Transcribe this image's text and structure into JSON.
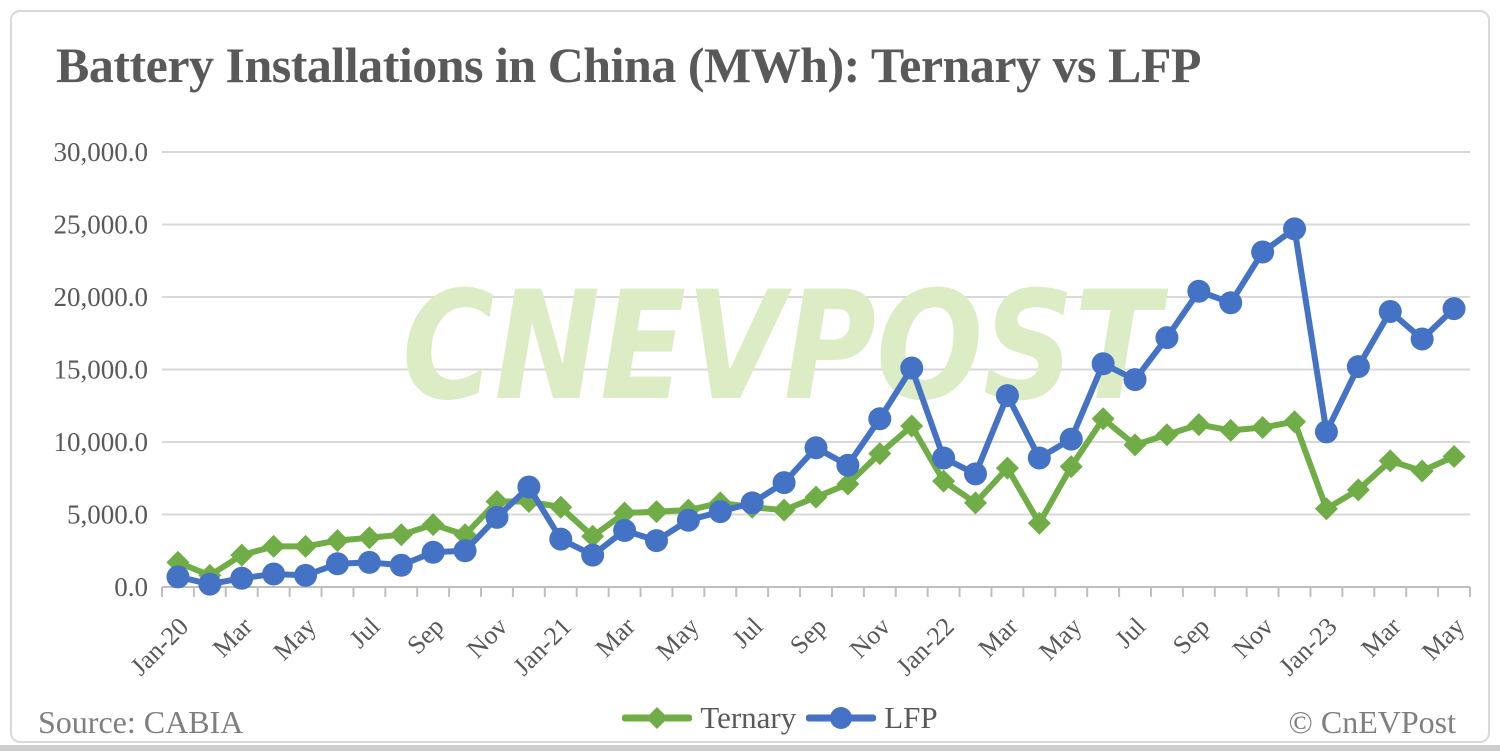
{
  "page": {
    "title": "Battery Installations in China (MWh): Ternary vs LFP",
    "source": "Source: CABIA",
    "copyright": "© CnEVPost",
    "watermark": "CNEVPOST",
    "watermark_color": "#dcecc4"
  },
  "chart_data": {
    "type": "line",
    "title": "Battery Installations in China (MWh): Ternary vs LFP",
    "xlabel": "",
    "ylabel": "",
    "ylim": [
      0,
      30000
    ],
    "y_step": 5000,
    "grid": true,
    "legend_position": "bottom",
    "y_tick_labels": [
      "0.0",
      "5,000.0",
      "10,000.0",
      "15,000.0",
      "20,000.0",
      "25,000.0",
      "30,000.0"
    ],
    "x_categories": [
      "Jan-20",
      "Feb-20",
      "Mar-20",
      "Apr-20",
      "May-20",
      "Jun-20",
      "Jul-20",
      "Aug-20",
      "Sep-20",
      "Oct-20",
      "Nov-20",
      "Dec-20",
      "Jan-21",
      "Feb-21",
      "Mar-21",
      "Apr-21",
      "May-21",
      "Jun-21",
      "Jul-21",
      "Aug-21",
      "Sep-21",
      "Oct-21",
      "Nov-21",
      "Dec-21",
      "Jan-22",
      "Feb-22",
      "Mar-22",
      "Apr-22",
      "May-22",
      "Jun-22",
      "Jul-22",
      "Aug-22",
      "Sep-22",
      "Oct-22",
      "Nov-22",
      "Dec-22",
      "Jan-23",
      "Feb-23",
      "Mar-23",
      "Apr-23",
      "May-23"
    ],
    "x_tick_labels": [
      "Jan-20",
      "Mar",
      "May",
      "Jul",
      "Sep",
      "Nov",
      "Jan-21",
      "Mar",
      "May",
      "Jul",
      "Sep",
      "Nov",
      "Jan-22",
      "Mar",
      "May",
      "Jul",
      "Sep",
      "Nov",
      "Jan-23",
      "Mar",
      "May"
    ],
    "series": [
      {
        "name": "Ternary",
        "color": "#70AD47",
        "marker": "diamond",
        "values": [
          1700,
          800,
          2200,
          2800,
          2800,
          3200,
          3400,
          3600,
          4300,
          3600,
          5900,
          5900,
          5500,
          3500,
          5100,
          5200,
          5300,
          5800,
          5500,
          5300,
          6200,
          7100,
          9200,
          11100,
          7300,
          5800,
          8200,
          4400,
          8300,
          11600,
          9800,
          10500,
          11200,
          10800,
          11000,
          11400,
          5400,
          6700,
          8700,
          8000,
          9000
        ]
      },
      {
        "name": "LFP",
        "color": "#4472C4",
        "marker": "circle",
        "values": [
          700,
          200,
          600,
          900,
          800,
          1600,
          1700,
          1500,
          2400,
          2500,
          4800,
          6900,
          3300,
          2200,
          3900,
          3200,
          4600,
          5200,
          5800,
          7200,
          9600,
          8400,
          11600,
          15100,
          8900,
          7800,
          13200,
          8900,
          10200,
          15400,
          14300,
          17200,
          20400,
          19600,
          23100,
          24700,
          10700,
          15200,
          19000,
          17100,
          19200
        ]
      }
    ]
  }
}
